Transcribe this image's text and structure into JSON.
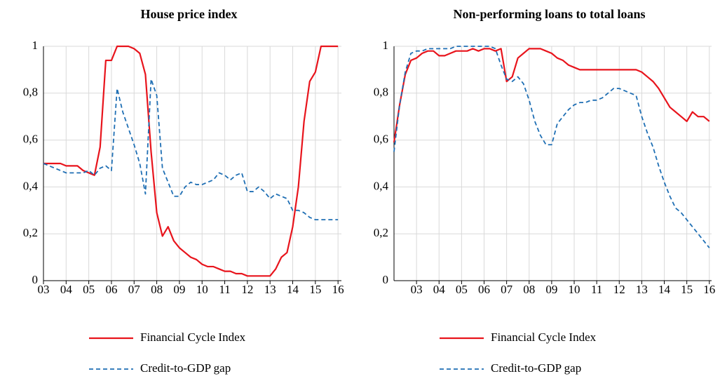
{
  "chart_data": [
    {
      "type": "line",
      "title": "House price index",
      "x": [
        3,
        3.25,
        3.5,
        3.75,
        4,
        4.25,
        4.5,
        4.75,
        5,
        5.25,
        5.5,
        5.75,
        6,
        6.25,
        6.5,
        6.75,
        7,
        7.25,
        7.5,
        7.75,
        8,
        8.25,
        8.5,
        8.75,
        9,
        9.25,
        9.5,
        9.75,
        10,
        10.25,
        10.5,
        10.75,
        11,
        11.25,
        11.5,
        11.75,
        12,
        12.25,
        12.5,
        12.75,
        13,
        13.25,
        13.5,
        13.75,
        14,
        14.25,
        14.5,
        14.75,
        15,
        15.25,
        15.5,
        15.75,
        16
      ],
      "series": [
        {
          "name": "Financial Cycle Index",
          "color": "#e8141c",
          "dash": "solid",
          "values": [
            0.5,
            0.5,
            0.5,
            0.5,
            0.49,
            0.49,
            0.49,
            0.47,
            0.46,
            0.45,
            0.57,
            0.94,
            0.94,
            1.0,
            1.0,
            1.0,
            0.99,
            0.97,
            0.88,
            0.55,
            0.29,
            0.19,
            0.23,
            0.17,
            0.14,
            0.12,
            0.1,
            0.09,
            0.07,
            0.06,
            0.06,
            0.05,
            0.04,
            0.04,
            0.03,
            0.03,
            0.02,
            0.02,
            0.02,
            0.02,
            0.02,
            0.05,
            0.1,
            0.12,
            0.23,
            0.4,
            0.68,
            0.85,
            0.89,
            1.0,
            1.0,
            1.0,
            1.0
          ]
        },
        {
          "name": "Credit-to-GDP gap",
          "color": "#1f6fb4",
          "dash": "dashed",
          "values": [
            0.5,
            0.49,
            0.48,
            0.47,
            0.46,
            0.46,
            0.46,
            0.46,
            0.47,
            0.45,
            0.48,
            0.49,
            0.47,
            0.82,
            0.72,
            0.65,
            0.58,
            0.5,
            0.37,
            0.86,
            0.79,
            0.48,
            0.42,
            0.36,
            0.36,
            0.4,
            0.42,
            0.41,
            0.41,
            0.42,
            0.43,
            0.46,
            0.45,
            0.43,
            0.45,
            0.46,
            0.38,
            0.38,
            0.4,
            0.38,
            0.35,
            0.37,
            0.36,
            0.35,
            0.3,
            0.3,
            0.29,
            0.27,
            0.26,
            0.26,
            0.26,
            0.26,
            0.26
          ]
        }
      ],
      "xlim": [
        3,
        16.15
      ],
      "xticks": [
        {
          "value": 3,
          "label": "03"
        },
        {
          "value": 4,
          "label": "04"
        },
        {
          "value": 5,
          "label": "05"
        },
        {
          "value": 6,
          "label": "06"
        },
        {
          "value": 7,
          "label": "07"
        },
        {
          "value": 8,
          "label": "08"
        },
        {
          "value": 9,
          "label": "09"
        },
        10,
        11,
        12,
        13,
        14,
        15,
        16
      ],
      "ylim": [
        0,
        1
      ],
      "yticks": [
        0,
        {
          "value": 0.2,
          "label": "0,2"
        },
        {
          "value": 0.4,
          "label": "0,4"
        },
        {
          "value": 0.6,
          "label": "0,6"
        },
        {
          "value": 0.8,
          "label": "0,8"
        },
        1
      ],
      "grid": true,
      "legend": "bottom"
    },
    {
      "type": "line",
      "title": "Non-performing loans to total loans",
      "x": [
        2,
        2.25,
        2.5,
        2.75,
        3,
        3.25,
        3.5,
        3.75,
        4,
        4.25,
        4.5,
        4.75,
        5,
        5.25,
        5.5,
        5.75,
        6,
        6.25,
        6.5,
        6.75,
        7,
        7.25,
        7.5,
        7.75,
        8,
        8.25,
        8.5,
        8.75,
        9,
        9.25,
        9.5,
        9.75,
        10,
        10.25,
        10.5,
        10.75,
        11,
        11.25,
        11.5,
        11.75,
        12,
        12.25,
        12.5,
        12.75,
        13,
        13.25,
        13.5,
        13.75,
        14,
        14.25,
        14.5,
        14.75,
        15,
        15.25,
        15.5,
        15.75,
        16
      ],
      "series": [
        {
          "name": "Financial Cycle Index",
          "color": "#e8141c",
          "dash": "solid",
          "values": [
            0.59,
            0.75,
            0.88,
            0.94,
            0.95,
            0.97,
            0.98,
            0.98,
            0.96,
            0.96,
            0.97,
            0.98,
            0.98,
            0.98,
            0.99,
            0.98,
            0.99,
            0.99,
            0.98,
            0.99,
            0.85,
            0.87,
            0.95,
            0.97,
            0.99,
            0.99,
            0.99,
            0.98,
            0.97,
            0.95,
            0.94,
            0.92,
            0.91,
            0.9,
            0.9,
            0.9,
            0.9,
            0.9,
            0.9,
            0.9,
            0.9,
            0.9,
            0.9,
            0.9,
            0.89,
            0.87,
            0.85,
            0.82,
            0.78,
            0.74,
            0.72,
            0.7,
            0.68,
            0.72,
            0.7,
            0.7,
            0.68
          ]
        },
        {
          "name": "Credit-to-GDP gap",
          "color": "#1f6fb4",
          "dash": "dashed",
          "values": [
            0.55,
            0.75,
            0.89,
            0.97,
            0.98,
            0.98,
            0.99,
            0.99,
            0.99,
            0.99,
            0.99,
            1.0,
            1.0,
            1.0,
            1.0,
            1.0,
            1.0,
            1.0,
            0.99,
            0.92,
            0.86,
            0.85,
            0.87,
            0.84,
            0.77,
            0.68,
            0.62,
            0.58,
            0.58,
            0.67,
            0.7,
            0.73,
            0.75,
            0.76,
            0.76,
            0.77,
            0.77,
            0.78,
            0.8,
            0.82,
            0.82,
            0.81,
            0.8,
            0.79,
            0.7,
            0.63,
            0.57,
            0.49,
            0.42,
            0.36,
            0.31,
            0.29,
            0.26,
            0.23,
            0.2,
            0.17,
            0.14
          ]
        }
      ],
      "xlim": [
        2,
        16.1
      ],
      "xticks": [
        {
          "value": 3,
          "label": "03"
        },
        {
          "value": 4,
          "label": "04"
        },
        {
          "value": 5,
          "label": "05"
        },
        {
          "value": 6,
          "label": "06"
        },
        {
          "value": 7,
          "label": "07"
        },
        {
          "value": 8,
          "label": "08"
        },
        {
          "value": 9,
          "label": "09"
        },
        10,
        11,
        12,
        13,
        14,
        15,
        16
      ],
      "ylim": [
        0,
        1
      ],
      "yticks": [
        0,
        {
          "value": 0.2,
          "label": "0,2"
        },
        {
          "value": 0.4,
          "label": "0,4"
        },
        {
          "value": 0.6,
          "label": "0,6"
        },
        {
          "value": 0.8,
          "label": "0,8"
        },
        1
      ],
      "grid": true,
      "legend": "bottom"
    }
  ]
}
